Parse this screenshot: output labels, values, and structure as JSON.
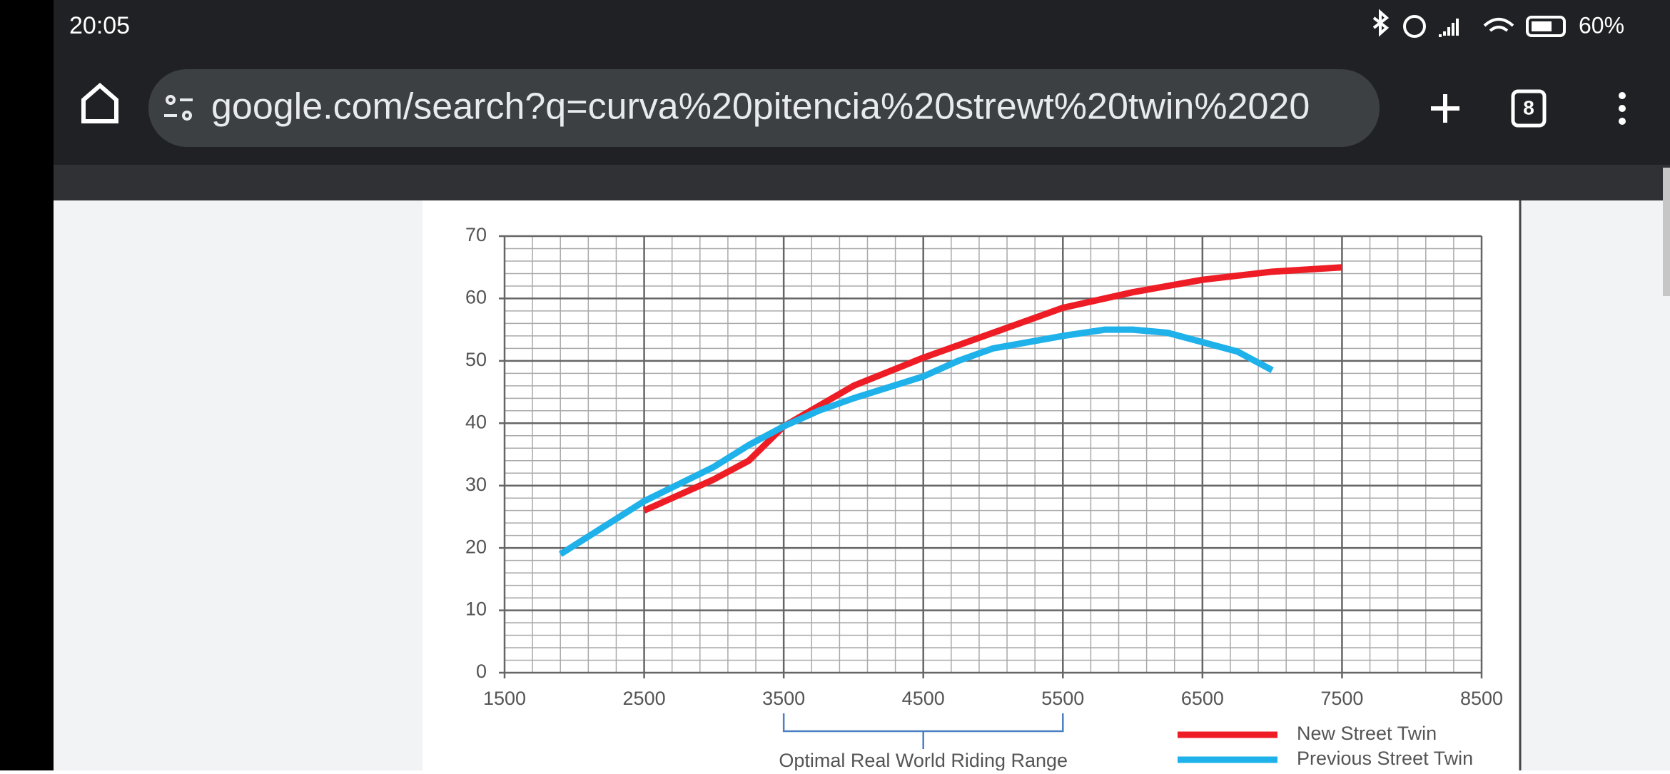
{
  "status_bar": {
    "time": "20:05",
    "battery": "60%"
  },
  "toolbar": {
    "url": "google.com/search?q=curva%20pitencia%20strewt%20twin%2020",
    "tab_count": "8"
  },
  "chart_data": {
    "type": "line",
    "series": [
      {
        "name": "New Street Twin",
        "color": "#ee1c25",
        "x": [
          2500,
          3000,
          3250,
          3500,
          4000,
          4500,
          5000,
          5500,
          6000,
          6500,
          7000,
          7500
        ],
        "values": [
          26,
          31,
          34,
          39.5,
          46,
          50.5,
          54.5,
          58.5,
          61,
          63,
          64.3,
          65
        ]
      },
      {
        "name": "Previous Street Twin",
        "color": "#1eb1ea",
        "x": [
          1900,
          2500,
          3000,
          3250,
          3500,
          3750,
          4000,
          4500,
          4750,
          5000,
          5500,
          5800,
          6000,
          6250,
          6500,
          6750,
          7000
        ],
        "values": [
          19,
          27.5,
          33,
          36.5,
          39.5,
          42,
          44,
          47.5,
          50,
          52,
          54,
          55,
          55,
          54.5,
          53,
          51.5,
          48.5
        ]
      }
    ],
    "xlim": [
      1500,
      8500
    ],
    "ylim": [
      0,
      70
    ],
    "xticks": [
      1500,
      2500,
      3500,
      4500,
      5500,
      6500,
      7500,
      8500
    ],
    "yticks": [
      0,
      10,
      20,
      30,
      40,
      50,
      60,
      70
    ],
    "minor_xstep": 200,
    "minor_ystep": 2,
    "grid": true,
    "annotation": {
      "text": "Optimal Real World Riding Range",
      "range": [
        3500,
        5500
      ]
    },
    "legend": "bottom-right"
  }
}
